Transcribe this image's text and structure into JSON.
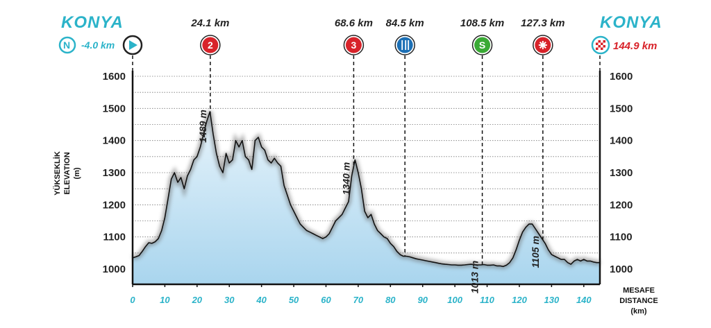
{
  "chart_data": {
    "type": "area",
    "start_city": "KONYA",
    "finish_city": "KONYA",
    "start_offset_label": "-4.0 km",
    "finish_distance_label": "144.9 km",
    "ylabel_lines": [
      "YÜKSEKLİK",
      "ELEVATION",
      "(m)"
    ],
    "xlabel_lines": [
      "MESAFE",
      "DISTANCE",
      "(km)"
    ],
    "ylim": [
      950,
      1600
    ],
    "xlim": [
      0,
      145
    ],
    "y_ticks": [
      1000,
      1100,
      1200,
      1300,
      1400,
      1500,
      1600
    ],
    "x_ticks": [
      0,
      10,
      20,
      30,
      40,
      50,
      60,
      70,
      80,
      90,
      100,
      110,
      120,
      130,
      140
    ],
    "points": [
      {
        "km": 24.1,
        "label": "24.1 km",
        "elevation": "1489 m",
        "icon": "climb-2-icon",
        "icon_text": "2",
        "color": "#d8232a"
      },
      {
        "km": 68.6,
        "label": "68.6 km",
        "elevation": "1340 m",
        "icon": "climb-3-icon",
        "icon_text": "3",
        "color": "#d8232a"
      },
      {
        "km": 84.5,
        "label": "84.5 km",
        "elevation": "",
        "icon": "feed-zone-icon",
        "icon_text": "",
        "color": "#1b6fb5"
      },
      {
        "km": 108.5,
        "label": "108.5 km",
        "elevation": "1013 m",
        "icon": "sprint-icon",
        "icon_text": "S",
        "color": "#3aaa35"
      },
      {
        "km": 127.3,
        "label": "127.3 km",
        "elevation": "1105 m",
        "icon": "intermediate-icon",
        "icon_text": "",
        "color": "#d8232a"
      }
    ],
    "profile": {
      "x": [
        0,
        1,
        2,
        3,
        4,
        5,
        6,
        7,
        8,
        9,
        10,
        11,
        12,
        13,
        14,
        15,
        16,
        17,
        18,
        19,
        20,
        21,
        22,
        23,
        24,
        25,
        26,
        27,
        28,
        29,
        30,
        31,
        32,
        33,
        34,
        35,
        36,
        37,
        38,
        39,
        40,
        41,
        42,
        43,
        44,
        45,
        46,
        47,
        48,
        49,
        50,
        51,
        52,
        53,
        54,
        55,
        56,
        57,
        58,
        59,
        60,
        61,
        62,
        63,
        64,
        65,
        66,
        67,
        68,
        69,
        70,
        71,
        72,
        73,
        74,
        75,
        76,
        77,
        78,
        79,
        80,
        81,
        82,
        83,
        84,
        85,
        86,
        87,
        88,
        89,
        90,
        91,
        92,
        93,
        94,
        95,
        96,
        97,
        98,
        99,
        100,
        101,
        102,
        103,
        104,
        105,
        106,
        107,
        108,
        109,
        110,
        111,
        112,
        113,
        114,
        115,
        116,
        117,
        118,
        119,
        120,
        121,
        122,
        123,
        124,
        125,
        126,
        127,
        128,
        129,
        130,
        131,
        132,
        133,
        134,
        135,
        136,
        137,
        138,
        139,
        140,
        141,
        142,
        143,
        144,
        145
      ],
      "y": [
        1035,
        1038,
        1042,
        1055,
        1070,
        1082,
        1080,
        1085,
        1095,
        1120,
        1160,
        1220,
        1280,
        1300,
        1270,
        1285,
        1250,
        1290,
        1310,
        1340,
        1350,
        1380,
        1420,
        1460,
        1490,
        1420,
        1360,
        1320,
        1300,
        1360,
        1330,
        1340,
        1400,
        1380,
        1400,
        1350,
        1340,
        1310,
        1400,
        1410,
        1380,
        1370,
        1340,
        1330,
        1345,
        1330,
        1320,
        1260,
        1230,
        1200,
        1180,
        1160,
        1140,
        1130,
        1120,
        1115,
        1110,
        1105,
        1100,
        1095,
        1100,
        1110,
        1130,
        1150,
        1160,
        1170,
        1190,
        1210,
        1290,
        1340,
        1300,
        1250,
        1180,
        1160,
        1170,
        1140,
        1120,
        1110,
        1100,
        1095,
        1080,
        1070,
        1055,
        1045,
        1040,
        1040,
        1038,
        1035,
        1032,
        1030,
        1028,
        1026,
        1024,
        1022,
        1020,
        1018,
        1016,
        1015,
        1014,
        1013,
        1013,
        1012,
        1012,
        1013,
        1014,
        1015,
        1014,
        1013,
        1013,
        1014,
        1012,
        1012,
        1013,
        1010,
        1010,
        1008,
        1012,
        1020,
        1035,
        1060,
        1090,
        1115,
        1130,
        1140,
        1140,
        1125,
        1110,
        1095,
        1080,
        1060,
        1045,
        1040,
        1035,
        1030,
        1030,
        1020,
        1015,
        1025,
        1030,
        1025,
        1030,
        1025,
        1025,
        1022,
        1020,
        1020
      ]
    }
  }
}
